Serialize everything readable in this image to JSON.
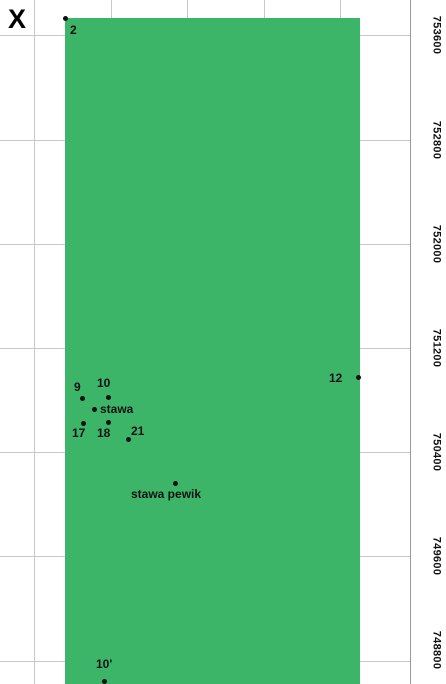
{
  "axis": {
    "x_label": "X"
  },
  "y_ticks": [
    "753600",
    "752800",
    "752000",
    "751200",
    "750400",
    "749600",
    "748800"
  ],
  "points": [
    {
      "id": "2",
      "label": "2"
    },
    {
      "id": "9",
      "label": "9"
    },
    {
      "id": "10",
      "label": "10"
    },
    {
      "id": "stawa",
      "label": "stawa"
    },
    {
      "id": "17",
      "label": "17"
    },
    {
      "id": "18",
      "label": "18"
    },
    {
      "id": "21",
      "label": "21"
    },
    {
      "id": "12",
      "label": "12"
    },
    {
      "id": "stawa-pewik",
      "label": "stawa pewik"
    },
    {
      "id": "10p",
      "label": "10'"
    }
  ],
  "colors": {
    "area": "#3cb569",
    "grid": "#c8c8c8",
    "point": "#111111"
  }
}
